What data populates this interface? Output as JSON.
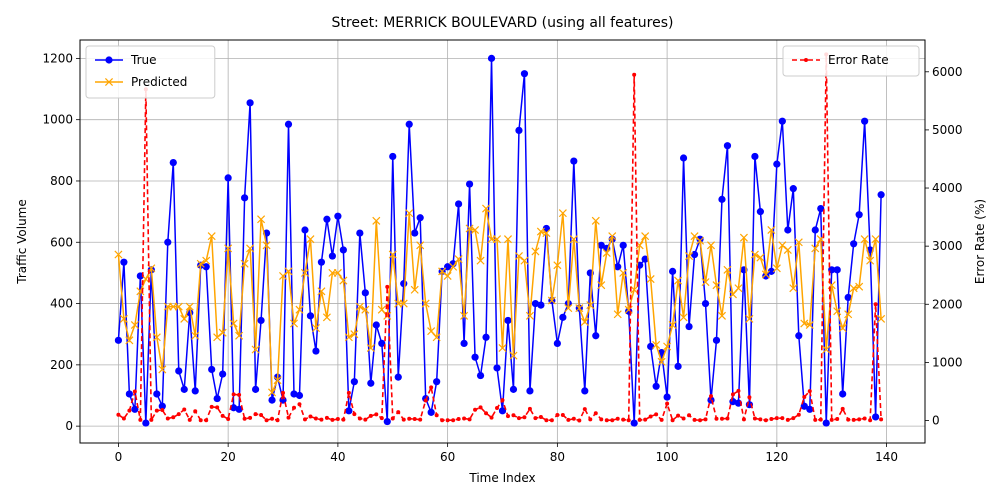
{
  "chart_data": {
    "type": "line",
    "title": "Street: MERRICK BOULEVARD (using all features)",
    "xlabel": "Time Index",
    "ylabel": "Traffic Volume",
    "y2label": "Error Rate (%)",
    "xlim": [
      -7,
      147
    ],
    "ylim": [
      -55,
      1260
    ],
    "y2lim": [
      -387,
      6547
    ],
    "x_ticks": [
      0,
      20,
      40,
      60,
      80,
      100,
      120,
      140
    ],
    "y_ticks": [
      0,
      200,
      400,
      600,
      800,
      1000,
      1200
    ],
    "y2_ticks": [
      0,
      1000,
      2000,
      3000,
      4000,
      5000,
      6000
    ],
    "grid": true,
    "legend_left_placement": "upper-left",
    "legend_right_placement": "upper-right",
    "series": [
      {
        "name": "True",
        "axis": "left",
        "color": "#0000ff",
        "marker": "circle",
        "values": [
          280,
          535,
          105,
          55,
          490,
          10,
          510,
          105,
          65,
          600,
          860,
          180,
          120,
          370,
          115,
          525,
          520,
          185,
          90,
          170,
          810,
          60,
          55,
          745,
          1055,
          120,
          345,
          630,
          85,
          160,
          85,
          985,
          105,
          100,
          640,
          360,
          245,
          535,
          675,
          555,
          685,
          575,
          50,
          145,
          630,
          435,
          140,
          330,
          270,
          15,
          880,
          160,
          465,
          985,
          630,
          680,
          90,
          45,
          145,
          505,
          520,
          530,
          725,
          270,
          790,
          225,
          165,
          290,
          1200,
          190,
          50,
          345,
          120,
          965,
          1150,
          115,
          400,
          395,
          645,
          410,
          270,
          355,
          400,
          865,
          385,
          115,
          500,
          295,
          590,
          580,
          610,
          520,
          590,
          375,
          10,
          525,
          545,
          260,
          130,
          240,
          95,
          505,
          195,
          875,
          325,
          560,
          610,
          400,
          85,
          280,
          740,
          915,
          80,
          75,
          510,
          70,
          880,
          700,
          490,
          505,
          855,
          995,
          640,
          775,
          295,
          65,
          55,
          640,
          710,
          10,
          510,
          510,
          105,
          420,
          595,
          690,
          995,
          575,
          30,
          755
        ]
      },
      {
        "name": "Predicted",
        "axis": "left",
        "color": "#ffa500",
        "marker": "x",
        "values": [
          560,
          350,
          280,
          330,
          440,
          480,
          515,
          290,
          185,
          390,
          390,
          390,
          350,
          390,
          295,
          530,
          540,
          620,
          290,
          305,
          580,
          335,
          295,
          530,
          580,
          250,
          675,
          590,
          110,
          150,
          490,
          505,
          335,
          380,
          500,
          610,
          320,
          440,
          355,
          500,
          500,
          475,
          290,
          300,
          390,
          380,
          255,
          670,
          380,
          360,
          560,
          400,
          400,
          695,
          445,
          590,
          400,
          310,
          290,
          505,
          490,
          520,
          545,
          360,
          645,
          640,
          540,
          710,
          610,
          610,
          255,
          610,
          230,
          555,
          540,
          360,
          570,
          635,
          630,
          410,
          525,
          695,
          385,
          610,
          385,
          340,
          395,
          670,
          460,
          565,
          620,
          365,
          500,
          380,
          445,
          590,
          620,
          480,
          265,
          210,
          260,
          330,
          475,
          355,
          555,
          620,
          605,
          470,
          590,
          460,
          360,
          510,
          430,
          450,
          615,
          350,
          560,
          550,
          495,
          640,
          515,
          590,
          575,
          450,
          600,
          335,
          330,
          580,
          610,
          250,
          460,
          375,
          320,
          365,
          450,
          455,
          610,
          540,
          610,
          350
        ]
      },
      {
        "name": "Error Rate",
        "axis": "right",
        "color": "#ff0000",
        "marker": "dot",
        "dashed": true,
        "values": [
          100,
          35,
          170,
          500,
          10,
          5700,
          10,
          170,
          180,
          35,
          55,
          110,
          190,
          10,
          160,
          5,
          5,
          235,
          225,
          80,
          25,
          450,
          440,
          30,
          45,
          110,
          95,
          5,
          30,
          5,
          475,
          50,
          220,
          280,
          20,
          70,
          35,
          15,
          45,
          10,
          25,
          15,
          475,
          110,
          35,
          15,
          80,
          105,
          40,
          2300,
          35,
          145,
          15,
          30,
          25,
          15,
          345,
          570,
          90,
          5,
          5,
          5,
          25,
          35,
          20,
          185,
          225,
          125,
          50,
          215,
          350,
          75,
          90,
          40,
          55,
          200,
          40,
          60,
          5,
          5,
          95,
          95,
          10,
          30,
          0,
          195,
          20,
          125,
          20,
          5,
          5,
          30,
          15,
          5,
          5950,
          10,
          15,
          70,
          105,
          10,
          290,
          5,
          85,
          35,
          90,
          10,
          5,
          20,
          420,
          30,
          30,
          35,
          450,
          510,
          20,
          400,
          35,
          20,
          5,
          25,
          40,
          40,
          10,
          40,
          100,
          405,
          505,
          10,
          15,
          6300,
          10,
          25,
          200,
          15,
          10,
          20,
          35,
          5,
          2000,
          20
        ]
      }
    ]
  }
}
